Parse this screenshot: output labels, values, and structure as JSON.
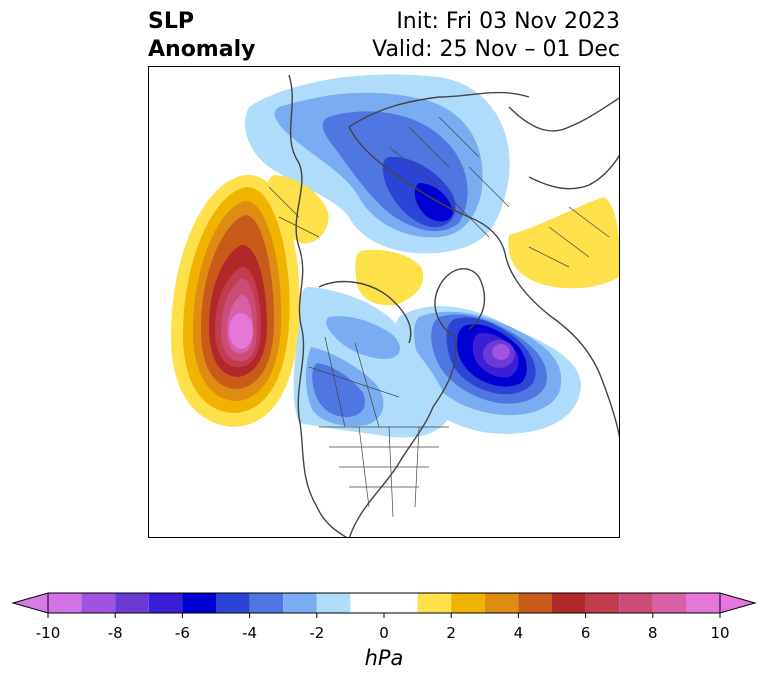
{
  "title": {
    "left_line1": "SLP",
    "left_line2": "Anomaly",
    "right_line1": "Init: Fri 03 Nov 2023",
    "right_line2": "Valid: 25 Nov – 01 Dec"
  },
  "colorbar": {
    "unit": "hPa",
    "extend": "both",
    "min": -10,
    "max": 10,
    "bins": [
      {
        "from": -10,
        "to": -9,
        "color": "#d272e6"
      },
      {
        "from": -9,
        "to": -8,
        "color": "#a052e0"
      },
      {
        "from": -8,
        "to": -7,
        "color": "#6b3ad6"
      },
      {
        "from": -7,
        "to": -6,
        "color": "#3a1fd6"
      },
      {
        "from": -6,
        "to": -5,
        "color": "#0000d2"
      },
      {
        "from": -5,
        "to": -4,
        "color": "#2b44d6"
      },
      {
        "from": -4,
        "to": -3,
        "color": "#5076e2"
      },
      {
        "from": -3,
        "to": -2,
        "color": "#79acf0"
      },
      {
        "from": -2,
        "to": -1,
        "color": "#aedcfa"
      },
      {
        "from": -1,
        "to": 1,
        "color": "#ffffff"
      },
      {
        "from": 1,
        "to": 2,
        "color": "#fde04a"
      },
      {
        "from": 2,
        "to": 3,
        "color": "#f0b400"
      },
      {
        "from": 3,
        "to": 4,
        "color": "#de8c12"
      },
      {
        "from": 4,
        "to": 5,
        "color": "#c85a1a"
      },
      {
        "from": 5,
        "to": 6,
        "color": "#b22828"
      },
      {
        "from": 6,
        "to": 7,
        "color": "#c23c50"
      },
      {
        "from": 7,
        "to": 8,
        "color": "#cc4c78"
      },
      {
        "from": 8,
        "to": 9,
        "color": "#d860a6"
      },
      {
        "from": 9,
        "to": 10,
        "color": "#e676d8"
      }
    ],
    "low_extend_color": "#d87ae8",
    "high_extend_color": "#e876e0",
    "ticks": [
      "-10",
      "-8",
      "-6",
      "-4",
      "-2",
      "0",
      "2",
      "4",
      "6",
      "8",
      "10"
    ]
  },
  "map": {
    "projection": "north-polar-stereographic",
    "border_color": "#444444"
  }
}
